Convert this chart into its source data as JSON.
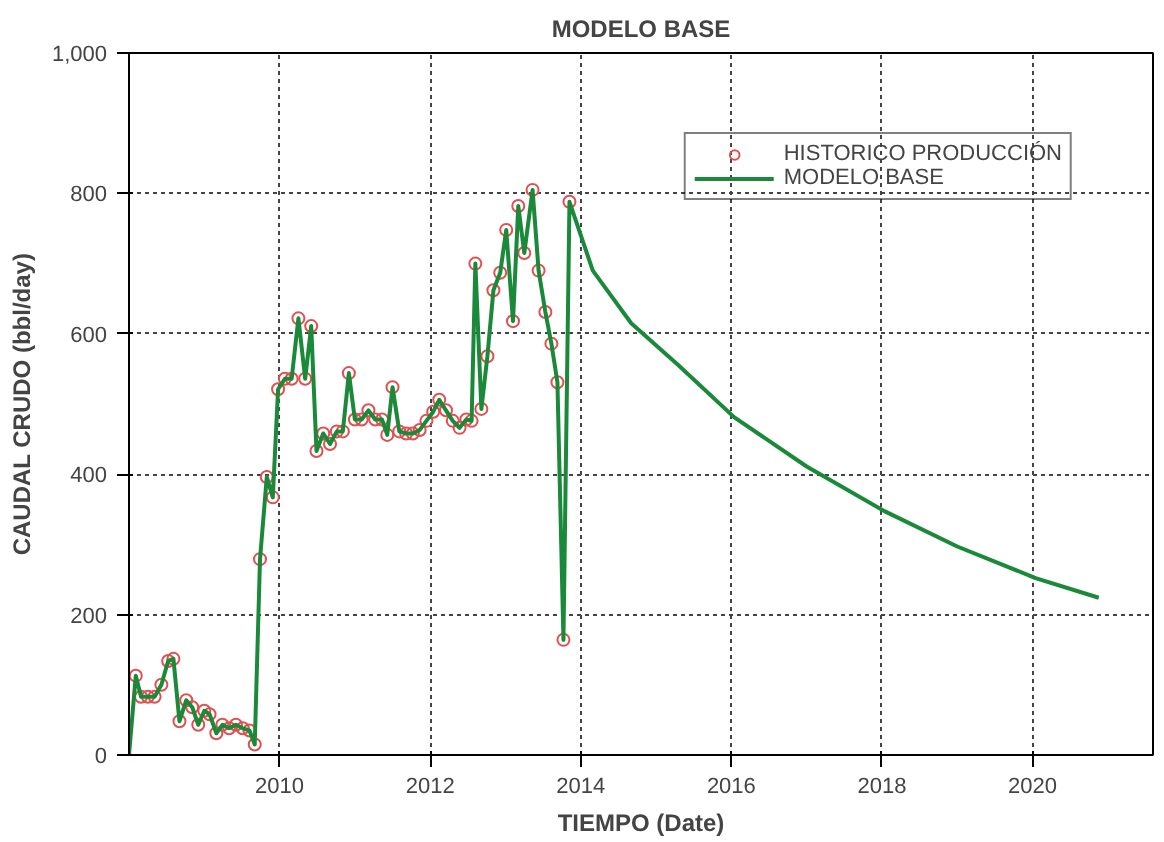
{
  "chart_data": {
    "type": "line",
    "title": "MODELO BASE",
    "xlabel": "TIEMPO (Date)",
    "ylabel": "CAUDAL CRUDO (bbl/day)",
    "series": [
      {
        "name": "HISTORICO PRODUCCIÓN",
        "type": "scatter",
        "marker": "circle",
        "color": "#e05050",
        "x": [
          2008.09,
          2008.16,
          2008.25,
          2008.34,
          2008.43,
          2008.52,
          2008.59,
          2008.67,
          2008.76,
          2008.84,
          2008.92,
          2009.0,
          2009.07,
          2009.16,
          2009.24,
          2009.33,
          2009.42,
          2009.51,
          2009.6,
          2009.67,
          2009.74,
          2009.83,
          2009.91,
          2009.98,
          2010.07,
          2010.16,
          2010.25,
          2010.34,
          2010.42,
          2010.49,
          2010.58,
          2010.67,
          2010.76,
          2010.84,
          2010.92,
          2011.0,
          2011.09,
          2011.18,
          2011.27,
          2011.36,
          2011.43,
          2011.5,
          2011.59,
          2011.68,
          2011.77,
          2011.86,
          2011.95,
          2012.04,
          2012.12,
          2012.21,
          2012.3,
          2012.39,
          2012.48,
          2012.55,
          2012.6,
          2012.68,
          2012.76,
          2012.84,
          2012.93,
          2013.01,
          2013.1,
          2013.17,
          2013.25,
          2013.36,
          2013.44,
          2013.53,
          2013.61,
          2013.69,
          2013.77,
          2013.85
        ],
        "values": [
          113,
          83,
          83,
          83,
          100,
          134,
          137,
          48,
          78,
          68,
          43,
          63,
          58,
          31,
          43,
          38,
          43,
          38,
          35,
          15,
          279,
          396,
          367,
          521,
          536,
          536,
          622,
          536,
          611,
          433,
          458,
          443,
          461,
          461,
          544,
          478,
          478,
          491,
          478,
          478,
          456,
          524,
          461,
          458,
          458,
          463,
          476,
          489,
          506,
          491,
          476,
          466,
          478,
          476,
          700,
          493,
          568,
          662,
          687,
          748,
          618,
          782,
          715,
          805,
          690,
          631,
          586,
          531,
          164,
          788
        ]
      },
      {
        "name": "MODELO BASE",
        "color": "#1a8a3a",
        "line_style": "solid",
        "marker": "none",
        "x": [
          2008.0,
          2008.09,
          2008.16,
          2008.25,
          2008.34,
          2008.43,
          2008.52,
          2008.59,
          2008.67,
          2008.76,
          2008.84,
          2008.92,
          2009.0,
          2009.07,
          2009.16,
          2009.24,
          2009.33,
          2009.42,
          2009.51,
          2009.6,
          2009.67,
          2009.74,
          2009.83,
          2009.91,
          2009.98,
          2010.07,
          2010.16,
          2010.25,
          2010.34,
          2010.42,
          2010.49,
          2010.58,
          2010.67,
          2010.76,
          2010.84,
          2010.92,
          2011.0,
          2011.09,
          2011.18,
          2011.27,
          2011.36,
          2011.43,
          2011.5,
          2011.59,
          2011.68,
          2011.77,
          2011.86,
          2011.95,
          2012.04,
          2012.12,
          2012.21,
          2012.3,
          2012.39,
          2012.48,
          2012.55,
          2012.6,
          2012.68,
          2012.76,
          2012.84,
          2012.93,
          2013.01,
          2013.1,
          2013.17,
          2013.25,
          2013.36,
          2013.44,
          2013.53,
          2013.61,
          2013.69,
          2013.77,
          2013.85,
          2014.16,
          2014.67,
          2015.29,
          2016.04,
          2017.0,
          2018.04,
          2019.0,
          2020.04,
          2020.88
        ],
        "values": [
          0,
          113,
          83,
          83,
          83,
          100,
          134,
          137,
          48,
          78,
          68,
          43,
          63,
          58,
          31,
          43,
          38,
          43,
          38,
          35,
          15,
          279,
          396,
          367,
          521,
          536,
          536,
          622,
          536,
          611,
          433,
          458,
          443,
          461,
          461,
          544,
          478,
          478,
          491,
          478,
          478,
          456,
          524,
          461,
          458,
          458,
          463,
          476,
          489,
          506,
          491,
          476,
          466,
          478,
          476,
          700,
          493,
          568,
          662,
          687,
          748,
          618,
          782,
          715,
          805,
          690,
          631,
          586,
          531,
          164,
          788,
          690,
          615,
          556,
          481,
          411,
          347,
          297,
          252,
          224
        ]
      }
    ],
    "xlim": [
      2008,
      2021.6
    ],
    "ylim": [
      0,
      1000
    ],
    "xticks": [
      2010,
      2012,
      2014,
      2016,
      2018,
      2020
    ],
    "yticks": [
      0,
      200,
      400,
      600,
      800,
      {
        "value": 1000,
        "label": "1,000"
      }
    ],
    "grid": true,
    "legend": "top right"
  }
}
